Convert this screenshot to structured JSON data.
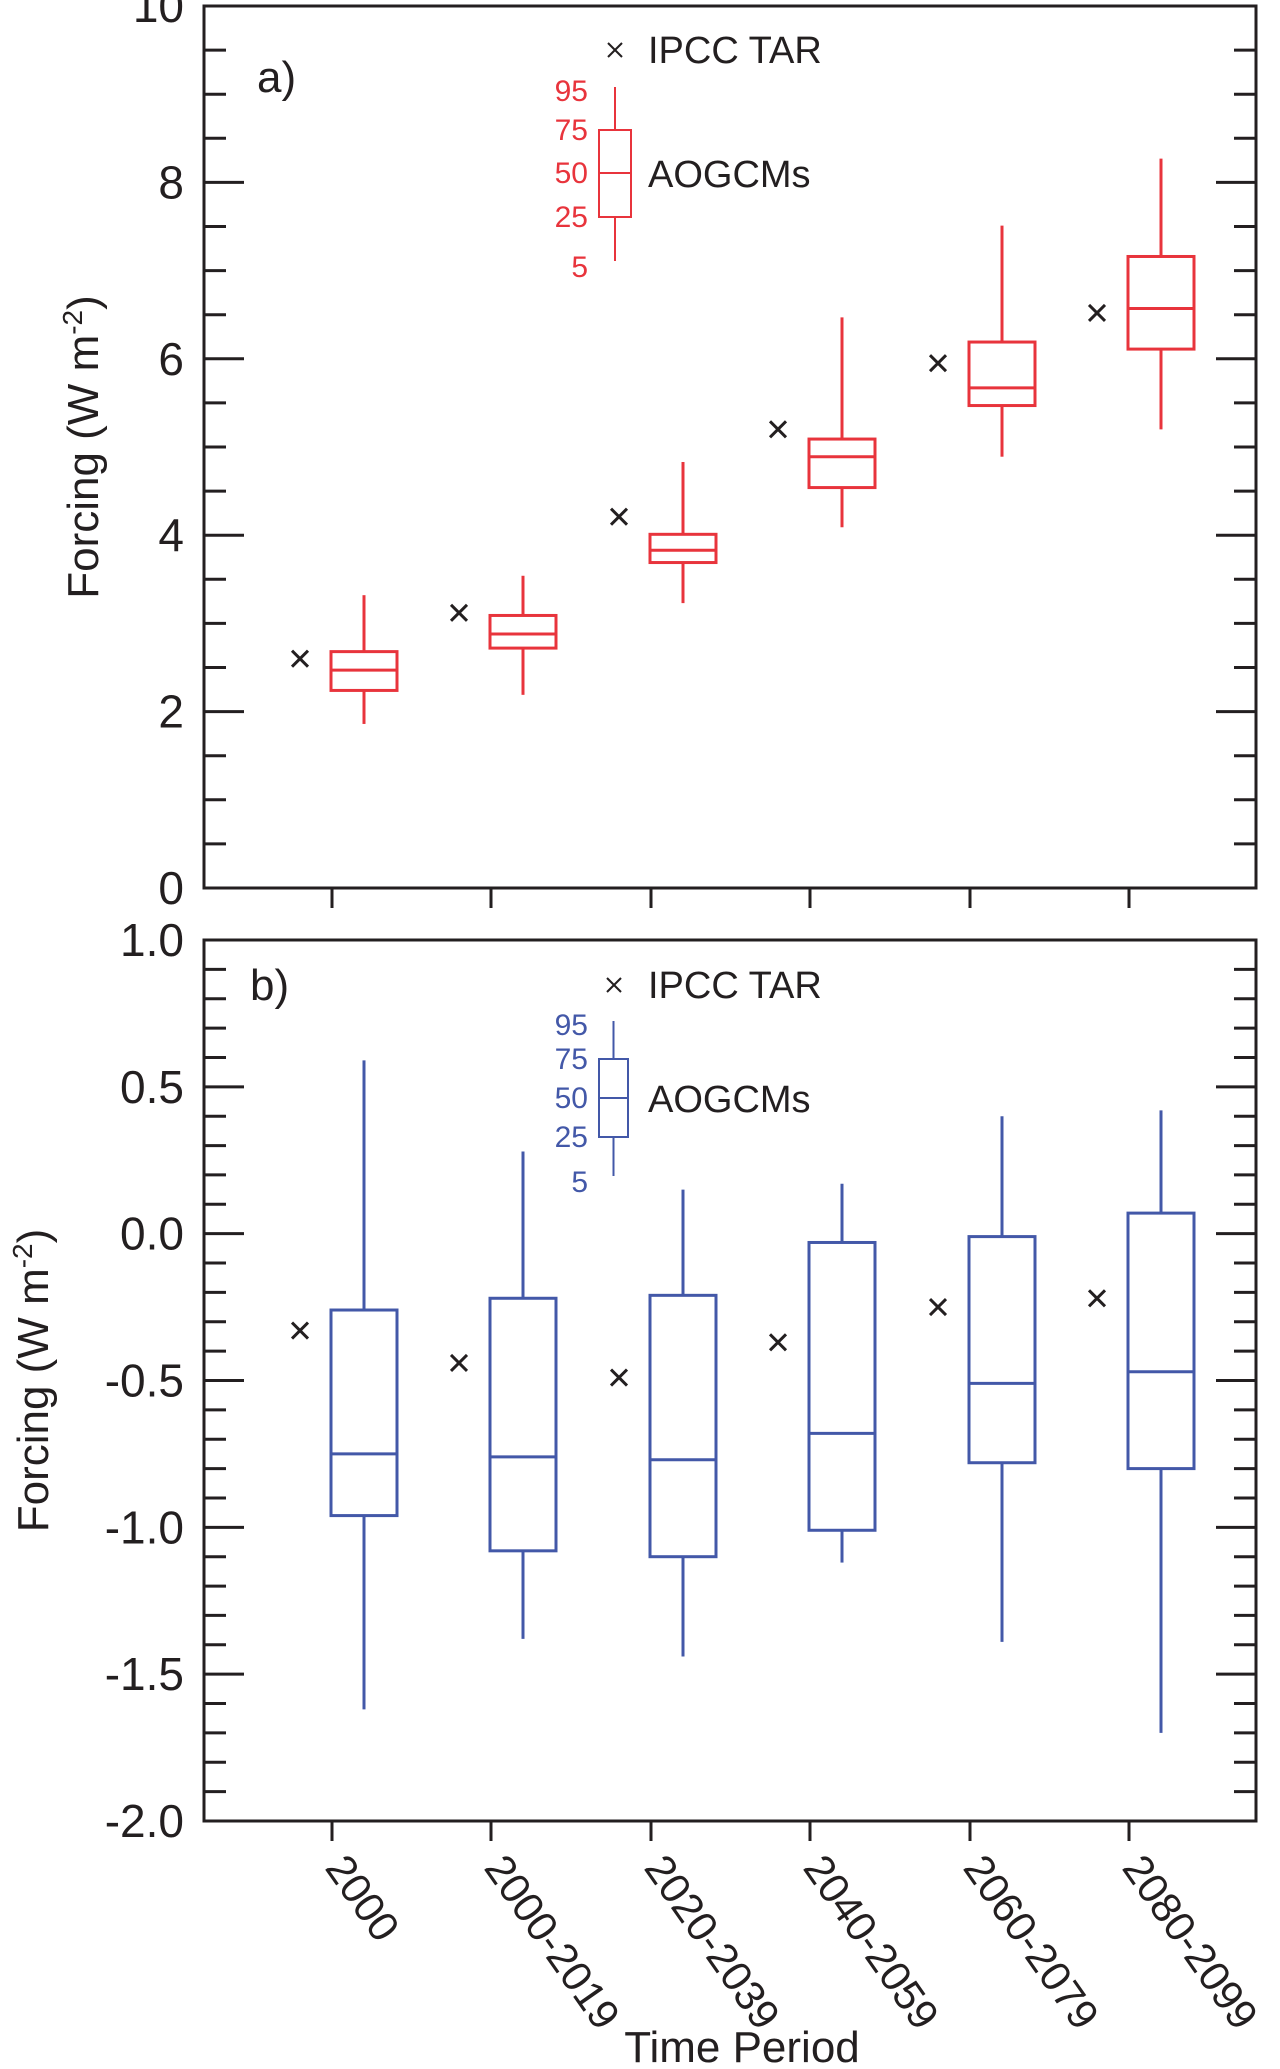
{
  "chart_data": [
    {
      "type": "box",
      "panel_label": "a)",
      "title": "",
      "xlabel": "Time Period",
      "ylabel": "Forcing (W m-2)",
      "ylabel_parts": {
        "main": "Forcing (W m",
        "sup": "-2",
        "close": ")"
      },
      "ylim": [
        0,
        10
      ],
      "yticks": [
        0,
        2,
        4,
        6,
        8,
        10
      ],
      "ytick_labels": [
        "0",
        "2",
        "4",
        "6",
        "8",
        "10"
      ],
      "yminor_step": 0.5,
      "color": "#e8343c",
      "categories": [
        "2000",
        "2000-2019",
        "2020-2039",
        "2040-2059",
        "2060-2079",
        "2080-2099"
      ],
      "series": [
        {
          "name": "AOGCMs",
          "p5": [
            1.86,
            2.19,
            3.23,
            4.09,
            4.89,
            5.2
          ],
          "p25": [
            2.24,
            2.72,
            3.69,
            4.54,
            5.47,
            6.11
          ],
          "p50": [
            2.47,
            2.88,
            3.83,
            4.89,
            5.67,
            6.57
          ],
          "p75": [
            2.68,
            3.09,
            4.01,
            5.09,
            6.19,
            7.16
          ],
          "p95": [
            3.32,
            3.54,
            4.83,
            6.47,
            7.51,
            8.27
          ]
        },
        {
          "name": "IPCC TAR",
          "values": [
            2.6,
            3.12,
            4.21,
            5.2,
            5.95,
            6.52
          ]
        }
      ],
      "legend": {
        "marker_label": "IPCC TAR",
        "box_label": "AOGCMs",
        "percentiles": [
          "95",
          "75",
          "50",
          "25",
          "5"
        ],
        "placement": "top-center"
      }
    },
    {
      "type": "box",
      "panel_label": "b)",
      "title": "",
      "xlabel": "Time Period",
      "ylabel": "Forcing (W m-2)",
      "ylabel_parts": {
        "main": "Forcing (W m",
        "sup": "-2",
        "close": ")"
      },
      "ylim": [
        -2.0,
        1.0
      ],
      "yticks": [
        -2.0,
        -1.5,
        -1.0,
        -0.5,
        0.0,
        0.5,
        1.0
      ],
      "ytick_labels": [
        "-2.0",
        "-1.5",
        "-1.0",
        "-0.5",
        "0.0",
        "0.5",
        "1.0"
      ],
      "yminor_step": 0.1,
      "color": "#4358a8",
      "categories": [
        "2000",
        "2000-2019",
        "2020-2039",
        "2040-2059",
        "2060-2079",
        "2080-2099"
      ],
      "series": [
        {
          "name": "AOGCMs",
          "p5": [
            -1.62,
            -1.38,
            -1.44,
            -1.12,
            -1.39,
            -1.7
          ],
          "p25": [
            -0.96,
            -1.08,
            -1.1,
            -1.01,
            -0.78,
            -0.8
          ],
          "p50": [
            -0.75,
            -0.76,
            -0.77,
            -0.68,
            -0.51,
            -0.47
          ],
          "p75": [
            -0.26,
            -0.22,
            -0.21,
            -0.03,
            -0.01,
            0.07
          ],
          "p95": [
            0.59,
            0.28,
            0.15,
            0.17,
            0.4,
            0.42
          ]
        },
        {
          "name": "IPCC TAR",
          "values": [
            -0.33,
            -0.44,
            -0.49,
            -0.37,
            -0.25,
            -0.22
          ]
        }
      ],
      "legend": {
        "marker_label": "IPCC TAR",
        "box_label": "AOGCMs",
        "percentiles": [
          "95",
          "75",
          "50",
          "25",
          "5"
        ],
        "placement": "top-center"
      }
    }
  ]
}
